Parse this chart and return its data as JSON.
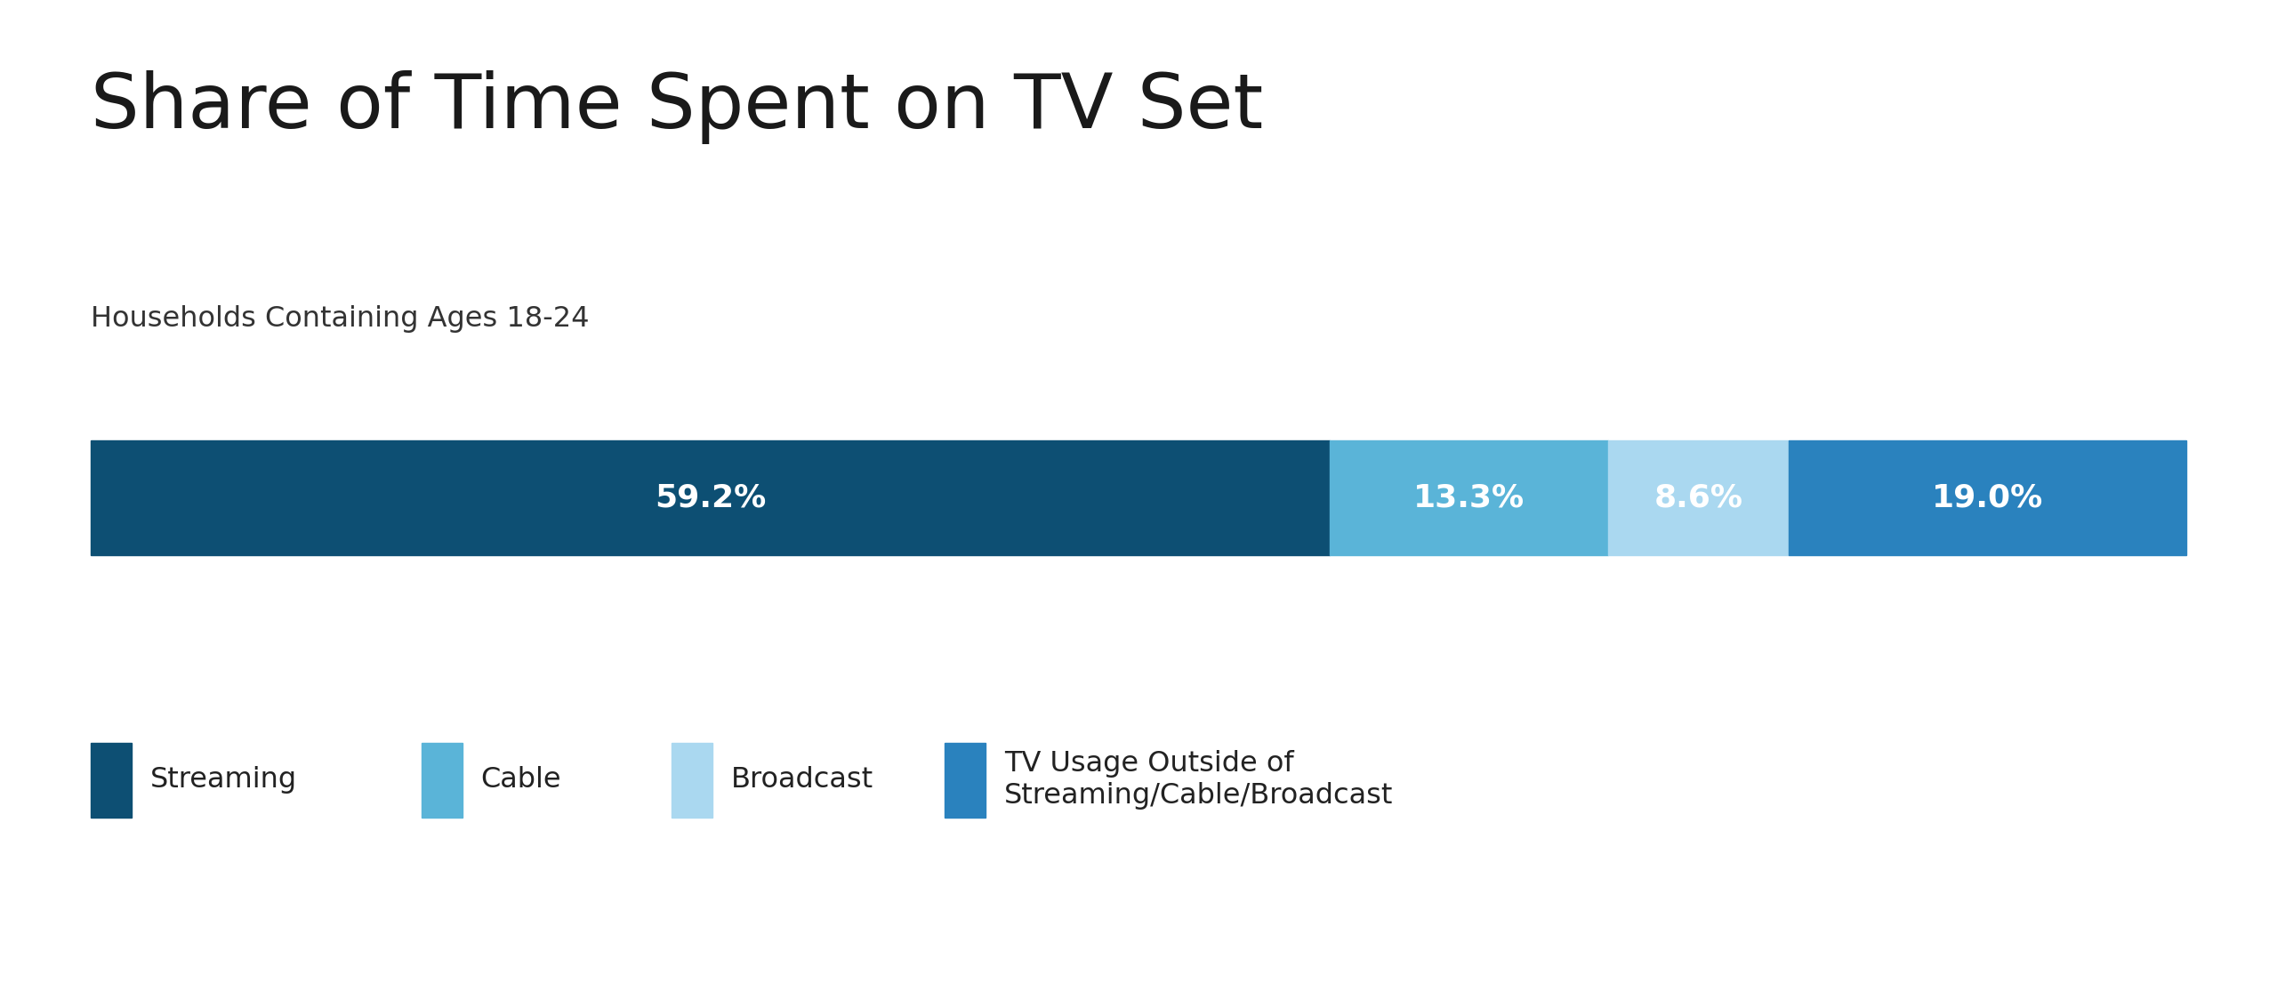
{
  "title": "Share of Time Spent on TV Set",
  "subtitle": "Households Containing Ages 18-24",
  "values": [
    59.2,
    13.3,
    8.6,
    19.0
  ],
  "labels": [
    "59.2%",
    "13.3%",
    "8.6%",
    "19.0%"
  ],
  "colors": [
    "#0d4f73",
    "#5ab4d8",
    "#aad8f0",
    "#2a82be"
  ],
  "background_color": "#ffffff",
  "title_fontsize": 62,
  "subtitle_fontsize": 23,
  "label_fontsize": 26,
  "legend_fontsize": 23,
  "text_color": "#ffffff",
  "title_color": "#1a1a1a",
  "subtitle_color": "#333333",
  "legend_text_color": "#222222",
  "legend_labels": [
    "Streaming",
    "Cable",
    "Broadcast",
    "TV Usage Outside of\nStreaming/Cable/Broadcast"
  ]
}
